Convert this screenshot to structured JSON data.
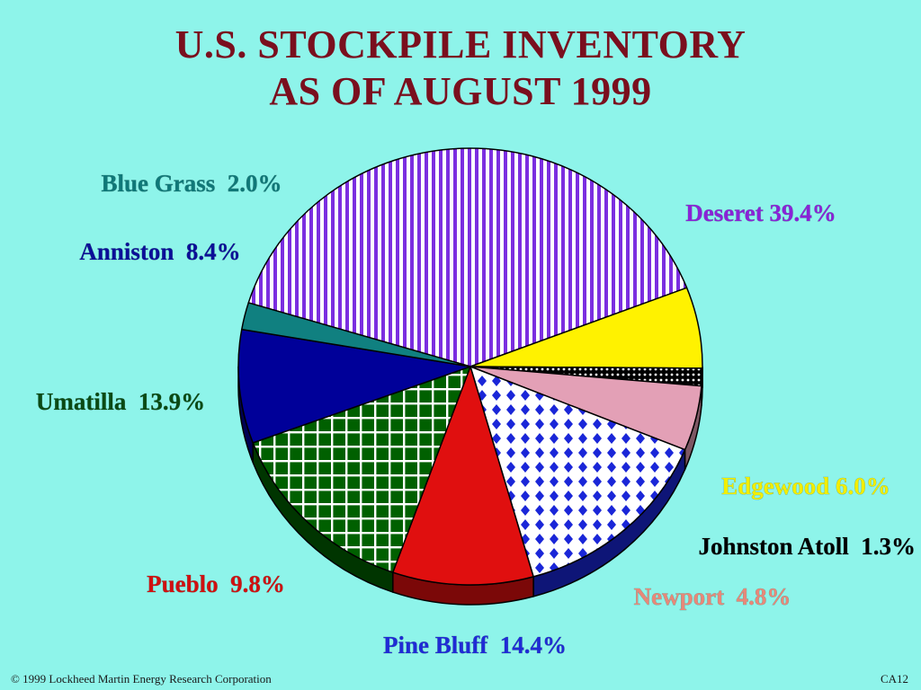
{
  "title_lines": [
    "U.S. STOCKPILE INVENTORY",
    "AS OF AUGUST 1999"
  ],
  "chart_data": {
    "type": "pie",
    "title": "U.S. STOCKPILE INVENTORY AS OF AUGUST 1999",
    "slices": [
      {
        "name": "Deseret",
        "value": 39.4,
        "label": "Deseret 39.4%",
        "color": "#7b2ee0",
        "pattern": "vertical-stripes",
        "label_color": "#8a22d8"
      },
      {
        "name": "Edgewood",
        "value": 6.0,
        "label": "Edgewood 6.0%",
        "color": "#fff200",
        "pattern": "solid",
        "label_color": "#f2ee00"
      },
      {
        "name": "Johnston Atoll",
        "value": 1.3,
        "label": "Johnston Atoll  1.3%",
        "color": "#000000",
        "pattern": "dots",
        "label_color": "#000000"
      },
      {
        "name": "Newport",
        "value": 4.8,
        "label": "Newport  4.8%",
        "color": "#e3a0b6",
        "pattern": "solid",
        "label_color": "#e88878"
      },
      {
        "name": "Pine Bluff",
        "value": 14.4,
        "label": "Pine Bluff  14.4%",
        "color": "#1a26d8",
        "pattern": "diamonds",
        "label_color": "#1f2bd6"
      },
      {
        "name": "Pueblo",
        "value": 9.8,
        "label": "Pueblo  9.8%",
        "color": "#e00f0f",
        "pattern": "solid",
        "label_color": "#d01010"
      },
      {
        "name": "Umatilla",
        "value": 13.9,
        "label": "Umatilla  13.9%",
        "color": "#006000",
        "pattern": "grid",
        "label_color": "#0a4a14"
      },
      {
        "name": "Anniston",
        "value": 8.4,
        "label": "Anniston  8.4%",
        "color": "#000099",
        "pattern": "solid",
        "label_color": "#0b0f98"
      },
      {
        "name": "Blue Grass",
        "value": 2.0,
        "label": "Blue Grass  2.0%",
        "color": "#108080",
        "pattern": "solid",
        "label_color": "#0f7878"
      }
    ]
  },
  "footer": {
    "copyright": "© 1999 Lockheed Martin Energy Research Corporation",
    "slide_code": "CA12"
  }
}
